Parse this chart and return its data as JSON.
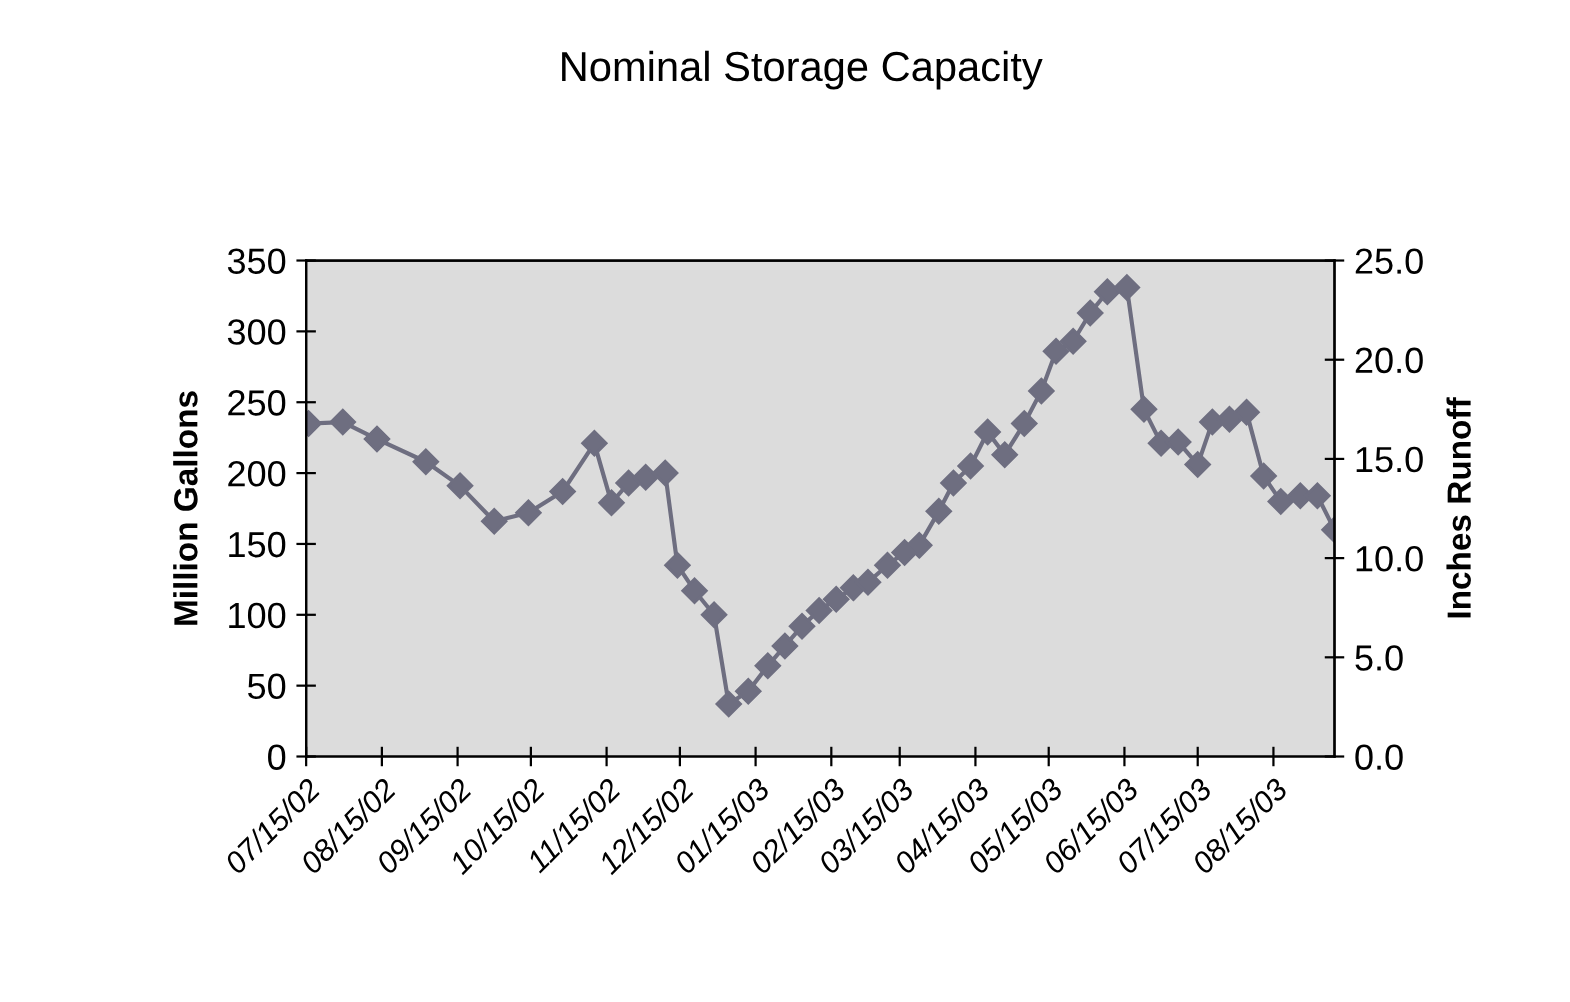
{
  "chart_data": {
    "type": "line",
    "title": "Nominal Storage Capacity",
    "ylabel": "Million Gallons",
    "y2label": "Inches Runoff",
    "x": [
      "2002-07-16",
      "2002-07-30",
      "2002-08-13",
      "2002-09-02",
      "2002-09-16",
      "2002-09-30",
      "2002-10-14",
      "2002-10-28",
      "2002-11-10",
      "2002-11-17",
      "2002-11-24",
      "2002-12-01",
      "2002-12-09",
      "2002-12-14",
      "2002-12-21",
      "2002-12-29",
      "2003-01-04",
      "2003-01-12",
      "2003-01-20",
      "2003-01-27",
      "2003-02-03",
      "2003-02-10",
      "2003-02-17",
      "2003-02-24",
      "2003-03-02",
      "2003-03-10",
      "2003-03-17",
      "2003-03-23",
      "2003-03-31",
      "2003-04-06",
      "2003-04-13",
      "2003-04-20",
      "2003-04-27",
      "2003-05-05",
      "2003-05-12",
      "2003-05-18",
      "2003-05-25",
      "2003-06-01",
      "2003-06-08",
      "2003-06-16",
      "2003-06-23",
      "2003-06-30",
      "2003-07-07",
      "2003-07-15",
      "2003-07-21",
      "2003-07-28",
      "2003-08-04",
      "2003-08-11",
      "2003-08-18",
      "2003-08-26",
      "2003-09-02",
      "2003-09-09"
    ],
    "series": [
      {
        "color": "#6e6e80",
        "values": [
          235,
          236,
          224,
          208,
          191,
          166,
          172,
          187,
          221,
          179,
          193,
          197,
          200,
          135,
          117,
          100,
          37,
          46,
          64,
          78,
          92,
          103,
          111,
          119,
          123,
          135,
          144,
          149,
          173,
          193,
          205,
          229,
          213,
          235,
          258,
          286,
          293,
          313,
          328,
          331,
          245,
          221,
          222,
          206,
          236,
          238,
          243,
          198,
          180,
          184,
          184,
          160
        ]
      }
    ],
    "marker": "diamond",
    "line_style": "solid",
    "grid": false,
    "legend": false,
    "xlim": [
      "2002-07-15",
      "2003-09-09"
    ],
    "xticks": [
      {
        "value": "2002-07-15",
        "label": "07/15/02"
      },
      {
        "value": "2002-08-15",
        "label": "08/15/02"
      },
      {
        "value": "2002-09-15",
        "label": "09/15/02"
      },
      {
        "value": "2002-10-15",
        "label": "10/15/02"
      },
      {
        "value": "2002-11-15",
        "label": "11/15/02"
      },
      {
        "value": "2002-12-15",
        "label": "12/15/02"
      },
      {
        "value": "2003-01-15",
        "label": "01/15/03"
      },
      {
        "value": "2003-02-15",
        "label": "02/15/03"
      },
      {
        "value": "2003-03-15",
        "label": "03/15/03"
      },
      {
        "value": "2003-04-15",
        "label": "04/15/03"
      },
      {
        "value": "2003-05-15",
        "label": "05/15/03"
      },
      {
        "value": "2003-06-15",
        "label": "06/15/03"
      },
      {
        "value": "2003-07-15",
        "label": "07/15/03"
      },
      {
        "value": "2003-08-15",
        "label": "08/15/03"
      }
    ],
    "ylim": [
      0,
      350
    ],
    "yticks": [
      0,
      50,
      100,
      150,
      200,
      250,
      300,
      350
    ],
    "y2lim": [
      0,
      25
    ],
    "y2ticks": [
      {
        "value": 0,
        "label": "0.0"
      },
      {
        "value": 5,
        "label": "5.0"
      },
      {
        "value": 10,
        "label": "10.0"
      },
      {
        "value": 15,
        "label": "15.0"
      },
      {
        "value": 20,
        "label": "20.0"
      },
      {
        "value": 25,
        "label": "25.0"
      }
    ]
  }
}
